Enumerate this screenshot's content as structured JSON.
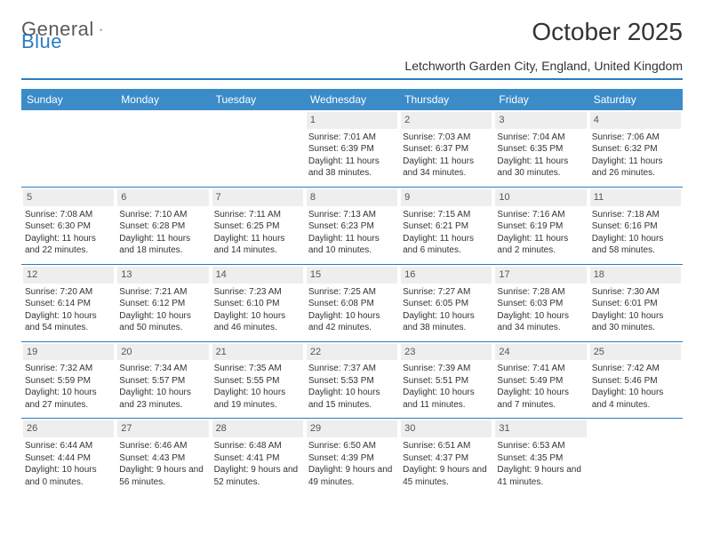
{
  "brand": {
    "part1": "General",
    "part2": "Blue"
  },
  "title": "October 2025",
  "location": "Letchworth Garden City, England, United Kingdom",
  "colors": {
    "header_bg": "#3b8bc8",
    "header_text": "#ffffff",
    "rule": "#2b7bbf",
    "daynum_bg": "#eeeeee",
    "text": "#333333",
    "page_bg": "#ffffff"
  },
  "typography": {
    "title_fontsize": 28,
    "location_fontsize": 14,
    "dayhead_fontsize": 12,
    "cell_fontsize": 10
  },
  "day_headers": [
    "Sunday",
    "Monday",
    "Tuesday",
    "Wednesday",
    "Thursday",
    "Friday",
    "Saturday"
  ],
  "weeks": [
    [
      null,
      null,
      null,
      {
        "n": "1",
        "sr": "7:01 AM",
        "ss": "6:39 PM",
        "dl": "11 hours and 38 minutes."
      },
      {
        "n": "2",
        "sr": "7:03 AM",
        "ss": "6:37 PM",
        "dl": "11 hours and 34 minutes."
      },
      {
        "n": "3",
        "sr": "7:04 AM",
        "ss": "6:35 PM",
        "dl": "11 hours and 30 minutes."
      },
      {
        "n": "4",
        "sr": "7:06 AM",
        "ss": "6:32 PM",
        "dl": "11 hours and 26 minutes."
      }
    ],
    [
      {
        "n": "5",
        "sr": "7:08 AM",
        "ss": "6:30 PM",
        "dl": "11 hours and 22 minutes."
      },
      {
        "n": "6",
        "sr": "7:10 AM",
        "ss": "6:28 PM",
        "dl": "11 hours and 18 minutes."
      },
      {
        "n": "7",
        "sr": "7:11 AM",
        "ss": "6:25 PM",
        "dl": "11 hours and 14 minutes."
      },
      {
        "n": "8",
        "sr": "7:13 AM",
        "ss": "6:23 PM",
        "dl": "11 hours and 10 minutes."
      },
      {
        "n": "9",
        "sr": "7:15 AM",
        "ss": "6:21 PM",
        "dl": "11 hours and 6 minutes."
      },
      {
        "n": "10",
        "sr": "7:16 AM",
        "ss": "6:19 PM",
        "dl": "11 hours and 2 minutes."
      },
      {
        "n": "11",
        "sr": "7:18 AM",
        "ss": "6:16 PM",
        "dl": "10 hours and 58 minutes."
      }
    ],
    [
      {
        "n": "12",
        "sr": "7:20 AM",
        "ss": "6:14 PM",
        "dl": "10 hours and 54 minutes."
      },
      {
        "n": "13",
        "sr": "7:21 AM",
        "ss": "6:12 PM",
        "dl": "10 hours and 50 minutes."
      },
      {
        "n": "14",
        "sr": "7:23 AM",
        "ss": "6:10 PM",
        "dl": "10 hours and 46 minutes."
      },
      {
        "n": "15",
        "sr": "7:25 AM",
        "ss": "6:08 PM",
        "dl": "10 hours and 42 minutes."
      },
      {
        "n": "16",
        "sr": "7:27 AM",
        "ss": "6:05 PM",
        "dl": "10 hours and 38 minutes."
      },
      {
        "n": "17",
        "sr": "7:28 AM",
        "ss": "6:03 PM",
        "dl": "10 hours and 34 minutes."
      },
      {
        "n": "18",
        "sr": "7:30 AM",
        "ss": "6:01 PM",
        "dl": "10 hours and 30 minutes."
      }
    ],
    [
      {
        "n": "19",
        "sr": "7:32 AM",
        "ss": "5:59 PM",
        "dl": "10 hours and 27 minutes."
      },
      {
        "n": "20",
        "sr": "7:34 AM",
        "ss": "5:57 PM",
        "dl": "10 hours and 23 minutes."
      },
      {
        "n": "21",
        "sr": "7:35 AM",
        "ss": "5:55 PM",
        "dl": "10 hours and 19 minutes."
      },
      {
        "n": "22",
        "sr": "7:37 AM",
        "ss": "5:53 PM",
        "dl": "10 hours and 15 minutes."
      },
      {
        "n": "23",
        "sr": "7:39 AM",
        "ss": "5:51 PM",
        "dl": "10 hours and 11 minutes."
      },
      {
        "n": "24",
        "sr": "7:41 AM",
        "ss": "5:49 PM",
        "dl": "10 hours and 7 minutes."
      },
      {
        "n": "25",
        "sr": "7:42 AM",
        "ss": "5:46 PM",
        "dl": "10 hours and 4 minutes."
      }
    ],
    [
      {
        "n": "26",
        "sr": "6:44 AM",
        "ss": "4:44 PM",
        "dl": "10 hours and 0 minutes."
      },
      {
        "n": "27",
        "sr": "6:46 AM",
        "ss": "4:43 PM",
        "dl": "9 hours and 56 minutes."
      },
      {
        "n": "28",
        "sr": "6:48 AM",
        "ss": "4:41 PM",
        "dl": "9 hours and 52 minutes."
      },
      {
        "n": "29",
        "sr": "6:50 AM",
        "ss": "4:39 PM",
        "dl": "9 hours and 49 minutes."
      },
      {
        "n": "30",
        "sr": "6:51 AM",
        "ss": "4:37 PM",
        "dl": "9 hours and 45 minutes."
      },
      {
        "n": "31",
        "sr": "6:53 AM",
        "ss": "4:35 PM",
        "dl": "9 hours and 41 minutes."
      },
      null
    ]
  ],
  "labels": {
    "sunrise": "Sunrise: ",
    "sunset": "Sunset: ",
    "daylight": "Daylight: "
  }
}
